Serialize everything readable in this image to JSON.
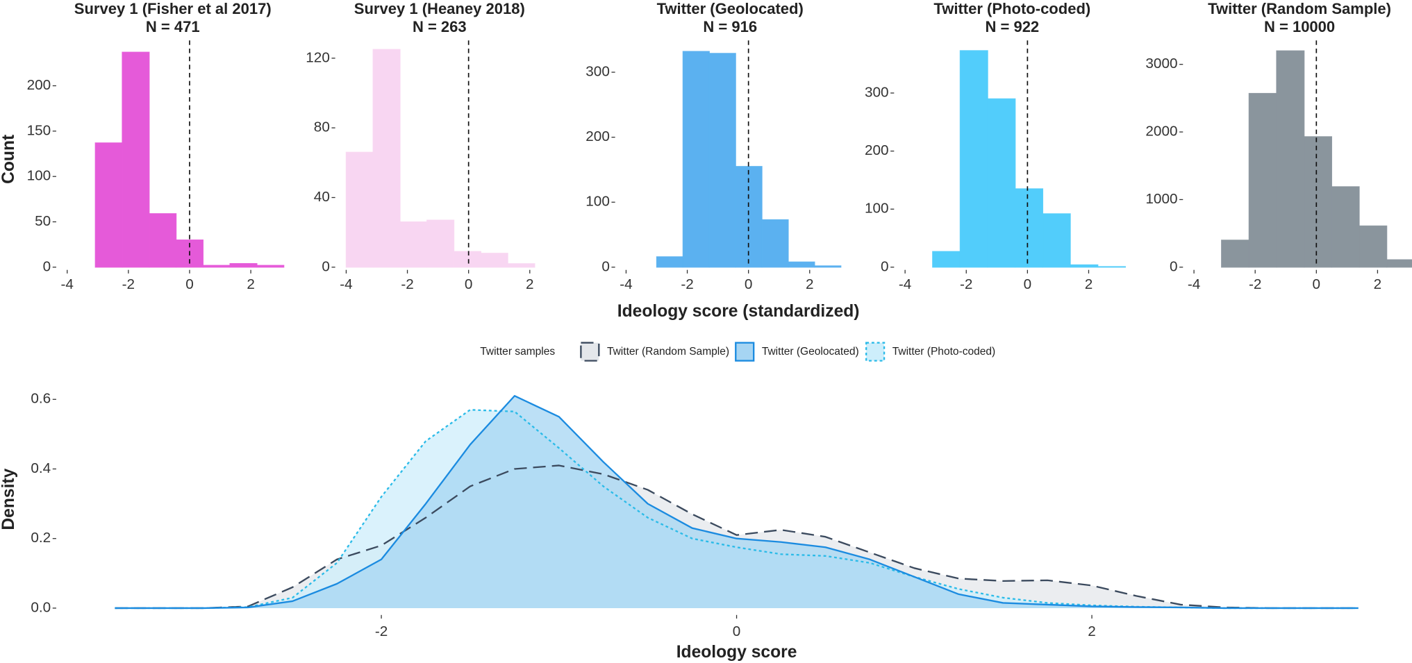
{
  "chart_data": [
    {
      "type": "histogram",
      "title": "Survey 1 (Fisher et al 2017)",
      "subtitle": "N = 471",
      "y_label": "Count",
      "bins": [
        -3.08,
        -2.2,
        -1.32,
        -0.44,
        0.44,
        1.32,
        2.2,
        3.08
      ],
      "counts": [
        137,
        237,
        59,
        30,
        2,
        4,
        2
      ],
      "color": "#e55ad9",
      "xlim": [
        -4.3,
        3.2
      ],
      "ylim": [
        0,
        240
      ],
      "xticks": [
        -4,
        -2,
        0,
        2
      ],
      "yticks": [
        0,
        50,
        100,
        150,
        200
      ],
      "vline": 0
    },
    {
      "type": "histogram",
      "title": "Survey 1 (Heaney 2018)",
      "subtitle": "N = 263",
      "bins": [
        -4.0,
        -3.12,
        -2.24,
        -1.36,
        -0.48,
        0.4,
        1.28,
        2.16
      ],
      "counts": [
        66,
        125,
        26,
        27,
        9,
        8,
        2
      ],
      "color": "#f8d6f2",
      "xlim": [
        -4.3,
        2.4
      ],
      "ylim": [
        0,
        125
      ],
      "xticks": [
        -4,
        -2,
        0,
        2
      ],
      "yticks": [
        0,
        40,
        80,
        120
      ],
      "vline": 0
    },
    {
      "type": "histogram",
      "title": "Twitter (Geolocated)",
      "subtitle": "N = 916",
      "x_label": "Ideology score (standardized)",
      "bins": [
        -3.0,
        -2.14,
        -1.28,
        -0.42,
        0.44,
        1.3,
        2.16,
        3.02
      ],
      "counts": [
        16,
        332,
        329,
        155,
        73,
        8,
        2
      ],
      "color": "#5bb1f0",
      "xlim": [
        -4.3,
        3.1
      ],
      "ylim": [
        0,
        335
      ],
      "xticks": [
        -4,
        -2,
        0,
        2
      ],
      "yticks": [
        0,
        100,
        200,
        300
      ],
      "vline": 0
    },
    {
      "type": "histogram",
      "title": "Twitter (Photo-coded)",
      "subtitle": "N = 922",
      "bins": [
        -3.1,
        -2.2,
        -1.3,
        -0.4,
        0.5,
        1.4,
        2.3,
        3.2
      ],
      "counts": [
        27,
        373,
        290,
        135,
        92,
        4,
        1
      ],
      "color": "#52cdfb",
      "xlim": [
        -4.3,
        3.3
      ],
      "ylim": [
        0,
        375
      ],
      "xticks": [
        -4,
        -2,
        0,
        2
      ],
      "yticks": [
        0,
        100,
        200,
        300
      ],
      "vline": 0
    },
    {
      "type": "histogram",
      "title": "Twitter (Random Sample)",
      "subtitle": "N = 10000",
      "bins": [
        -3.1,
        -2.2,
        -1.3,
        -0.4,
        0.5,
        1.4,
        2.3,
        3.2
      ],
      "counts": [
        400,
        2570,
        3200,
        1930,
        1190,
        610,
        110
      ],
      "color": "#8a959d",
      "xlim": [
        -4.3,
        3.2
      ],
      "ylim": [
        0,
        3220
      ],
      "xticks": [
        -4,
        -2,
        0,
        2
      ],
      "yticks": [
        0,
        1000,
        2000,
        3000
      ],
      "vline": 0
    },
    {
      "type": "density",
      "x_label": "Ideology score",
      "y_label": "Density",
      "legend_title": "Twitter samples",
      "legend": "top",
      "x": [
        -3.5,
        -3.25,
        -3,
        -2.75,
        -2.5,
        -2.25,
        -2,
        -1.75,
        -1.5,
        -1.25,
        -1,
        -0.75,
        -0.5,
        -0.25,
        0,
        0.25,
        0.5,
        0.75,
        1,
        1.25,
        1.5,
        1.75,
        2,
        2.25,
        2.5,
        2.75,
        3,
        3.25,
        3.5
      ],
      "series": [
        {
          "name": "Twitter (Random Sample)",
          "color": "#3b4a5e",
          "fill": "#e4e7eb",
          "linestyle": "dashed",
          "values": [
            0,
            0,
            0,
            0.005,
            0.06,
            0.14,
            0.18,
            0.26,
            0.35,
            0.4,
            0.41,
            0.385,
            0.34,
            0.27,
            0.21,
            0.225,
            0.205,
            0.16,
            0.115,
            0.085,
            0.078,
            0.08,
            0.065,
            0.035,
            0.01,
            0.002,
            0,
            0,
            0
          ]
        },
        {
          "name": "Twitter (Geolocated)",
          "color": "#1b8be0",
          "fill": "#a6d5f3",
          "linestyle": "solid",
          "values": [
            0,
            0,
            0,
            0.002,
            0.02,
            0.07,
            0.14,
            0.3,
            0.47,
            0.61,
            0.55,
            0.42,
            0.3,
            0.23,
            0.2,
            0.19,
            0.175,
            0.14,
            0.09,
            0.04,
            0.015,
            0.01,
            0.005,
            0.003,
            0.002,
            0,
            0,
            0,
            0
          ]
        },
        {
          "name": "Twitter (Photo-coded)",
          "color": "#2bbbe8",
          "fill": "#cdeefb",
          "linestyle": "dotted",
          "values": [
            0,
            0,
            0,
            0.003,
            0.03,
            0.13,
            0.32,
            0.48,
            0.57,
            0.565,
            0.46,
            0.35,
            0.26,
            0.2,
            0.175,
            0.155,
            0.15,
            0.13,
            0.09,
            0.055,
            0.03,
            0.015,
            0.008,
            0.004,
            0.002,
            0,
            0,
            0,
            0
          ]
        }
      ],
      "xlim": [
        -3.8,
        3.8
      ],
      "ylim": [
        -0.03,
        0.65
      ],
      "xticks": [
        -2,
        0,
        2
      ],
      "yticks": [
        {
          "value": 0,
          "label": "0.0"
        },
        0.2,
        0.4,
        0.6
      ]
    }
  ]
}
